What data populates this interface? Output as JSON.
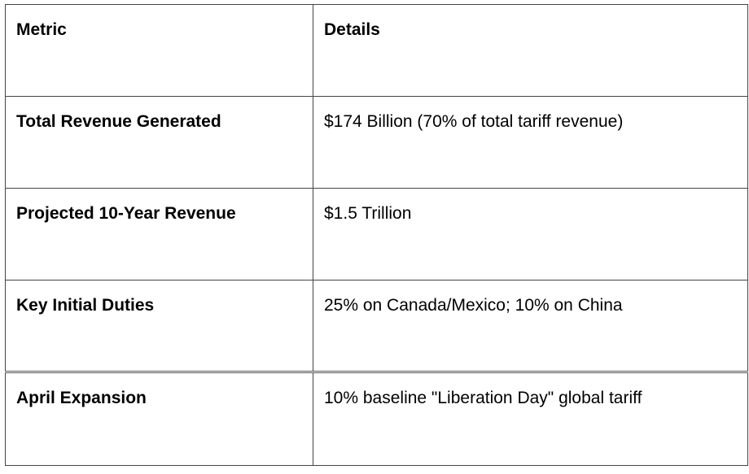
{
  "table": {
    "headers": [
      "Metric",
      "Details"
    ],
    "rows": [
      {
        "metric": "Total Revenue Generated",
        "details": "$174 Billion (70% of total tariff revenue)"
      },
      {
        "metric": "Projected 10-Year Revenue",
        "details": "$1.5 Trillion"
      },
      {
        "metric": "Key Initial Duties",
        "details": "25% on Canada/Mexico; 10% on China"
      },
      {
        "metric": "April Expansion",
        "details": "10% baseline \"Liberation Day\" global tariff"
      }
    ]
  }
}
